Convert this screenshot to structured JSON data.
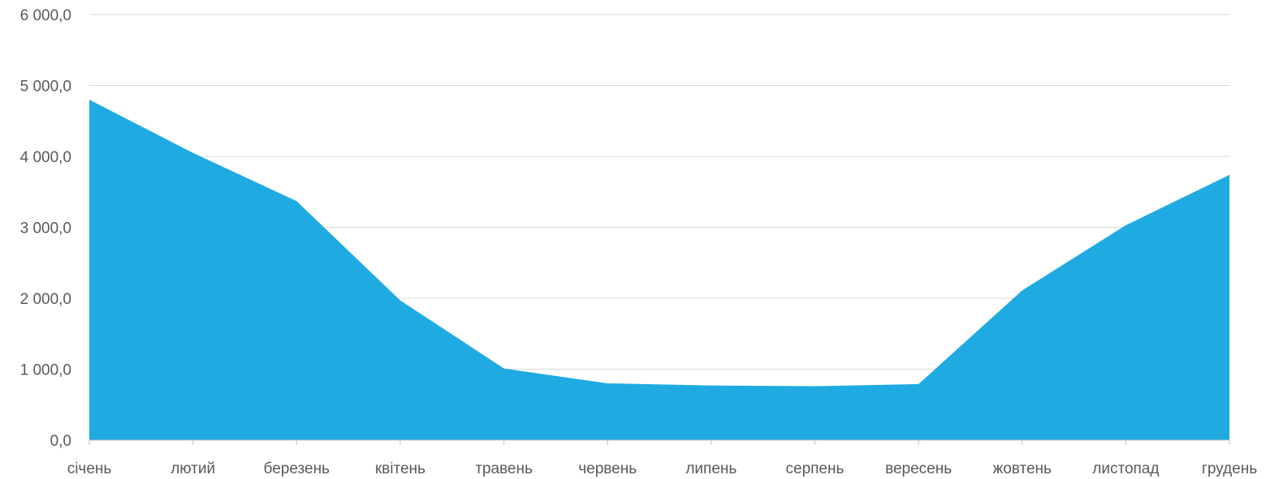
{
  "chart_data": {
    "type": "area",
    "title": "",
    "xlabel": "",
    "ylabel": "",
    "categories": [
      "січень",
      "лютий",
      "березень",
      "квітень",
      "травень",
      "червень",
      "липень",
      "серпень",
      "вересень",
      "жовтень",
      "листопад",
      "грудень"
    ],
    "series": [
      {
        "values": [
          4800,
          4050,
          3370,
          1970,
          1010,
          800,
          770,
          760,
          790,
          2110,
          3030,
          3740
        ]
      }
    ],
    "ylim": [
      0,
      6000
    ],
    "yticks": [
      0,
      1000,
      2000,
      3000,
      4000,
      5000,
      6000
    ],
    "ytick_labels": [
      "0,0",
      "1 000,0",
      "2 000,0",
      "3 000,0",
      "4 000,0",
      "5 000,0",
      "6 000,0"
    ],
    "grid": true,
    "legend": "none",
    "colors": {
      "area": "#1fabe1",
      "grid": "#d9d9d9",
      "axis": "#bfbfbf",
      "text": "#595959"
    }
  }
}
